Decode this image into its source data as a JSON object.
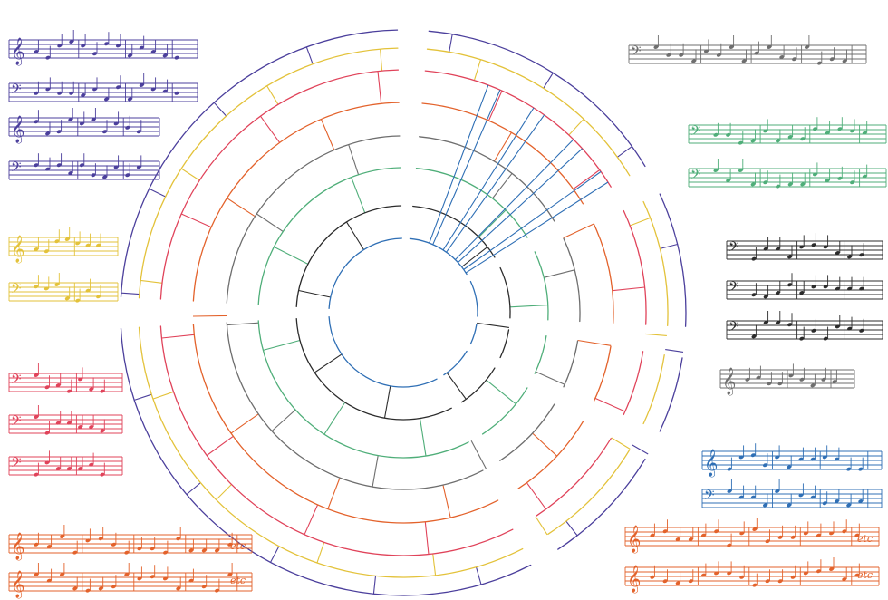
{
  "palette": {
    "purple": "#4b3f9c",
    "yellow": "#e3c23a",
    "red": "#e0435a",
    "orange": "#e3622b",
    "gray": "#6e6e6e",
    "green": "#4fae79",
    "black": "#2b2b2b",
    "blue": "#2f6fb5"
  },
  "rings": [
    {
      "name": "ring-purple",
      "color_key": "purple"
    },
    {
      "name": "ring-yellow",
      "color_key": "yellow"
    },
    {
      "name": "ring-red",
      "color_key": "red"
    },
    {
      "name": "ring-orange",
      "color_key": "orange"
    },
    {
      "name": "ring-gray",
      "color_key": "gray"
    },
    {
      "name": "ring-green",
      "color_key": "green"
    },
    {
      "name": "ring-black",
      "color_key": "black"
    },
    {
      "name": "ring-blue",
      "color_key": "blue"
    }
  ],
  "excerpts": [
    {
      "name": "excerpt-purple-1",
      "color_key": "purple",
      "clefs": [
        "treble",
        "bass"
      ]
    },
    {
      "name": "excerpt-purple-2",
      "color_key": "purple",
      "clefs": [
        "treble",
        "bass"
      ]
    },
    {
      "name": "excerpt-yellow",
      "color_key": "yellow",
      "clefs": [
        "treble",
        "bass"
      ]
    },
    {
      "name": "excerpt-red",
      "color_key": "red",
      "clefs": [
        "bass",
        "bass",
        "bass"
      ]
    },
    {
      "name": "excerpt-orange-left",
      "color_key": "orange",
      "clefs": [
        "treble",
        "treble"
      ],
      "annotation": "etc"
    },
    {
      "name": "excerpt-gray-top",
      "color_key": "gray",
      "clefs": [
        "bass"
      ]
    },
    {
      "name": "excerpt-green",
      "color_key": "green",
      "clefs": [
        "bass",
        "bass"
      ]
    },
    {
      "name": "excerpt-black",
      "color_key": "black",
      "clefs": [
        "bass",
        "bass",
        "bass"
      ]
    },
    {
      "name": "excerpt-gray-mid",
      "color_key": "gray",
      "clefs": [
        "treble"
      ]
    },
    {
      "name": "excerpt-blue",
      "color_key": "blue",
      "clefs": [
        "treble",
        "bass"
      ]
    },
    {
      "name": "excerpt-orange-right",
      "color_key": "orange",
      "clefs": [
        "treble",
        "treble"
      ],
      "annotation": "etc"
    }
  ]
}
